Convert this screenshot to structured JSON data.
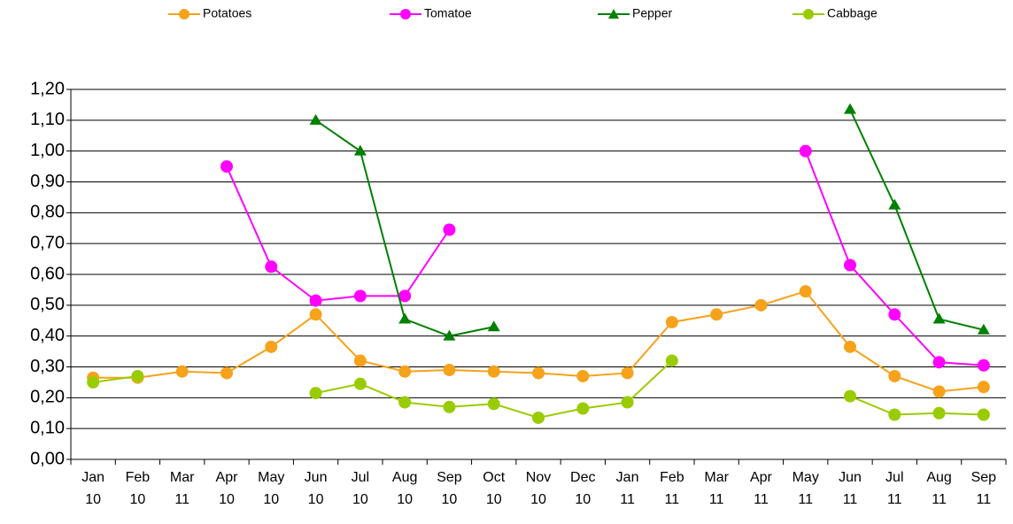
{
  "chart_data": {
    "type": "line",
    "categories": [
      [
        "Jan",
        "10"
      ],
      [
        "Feb",
        "10"
      ],
      [
        "Mar",
        "11"
      ],
      [
        "Apr",
        "10"
      ],
      [
        "May",
        "10"
      ],
      [
        "Jun",
        "10"
      ],
      [
        "Jul",
        "10"
      ],
      [
        "Aug",
        "10"
      ],
      [
        "Sep",
        "10"
      ],
      [
        "Oct",
        "10"
      ],
      [
        "Nov",
        "10"
      ],
      [
        "Dec",
        "10"
      ],
      [
        "Jan",
        "11"
      ],
      [
        "Feb",
        "11"
      ],
      [
        "Mar",
        "11"
      ],
      [
        "Apr",
        "11"
      ],
      [
        "May",
        "11"
      ],
      [
        "Jun",
        "11"
      ],
      [
        "Jul",
        "11"
      ],
      [
        "Aug",
        "11"
      ],
      [
        "Sep",
        "11"
      ]
    ],
    "series": [
      {
        "name": "Potatoes",
        "color": "#f7a21b",
        "marker": "circle",
        "values": [
          0.265,
          0.265,
          0.285,
          0.28,
          0.365,
          0.47,
          0.32,
          0.285,
          0.29,
          0.285,
          0.28,
          0.27,
          0.28,
          0.445,
          0.47,
          0.5,
          0.545,
          0.365,
          0.27,
          0.22,
          0.235
        ]
      },
      {
        "name": "Tomatoe",
        "color": "#ff00ff",
        "marker": "circle",
        "values": [
          null,
          null,
          null,
          0.95,
          0.625,
          0.515,
          0.53,
          0.53,
          0.745,
          null,
          null,
          null,
          null,
          null,
          null,
          null,
          1.0,
          0.63,
          0.47,
          0.315,
          0.305
        ]
      },
      {
        "name": "Pepper",
        "color": "#008000",
        "marker": "triangle",
        "values": [
          null,
          null,
          null,
          null,
          null,
          1.1,
          1.0,
          0.455,
          0.4,
          0.43,
          null,
          null,
          null,
          null,
          null,
          null,
          null,
          1.135,
          0.825,
          0.455,
          0.42
        ]
      },
      {
        "name": "Cabbage",
        "color": "#99cc00",
        "marker": "circle",
        "values": [
          0.25,
          0.27,
          null,
          null,
          null,
          0.215,
          0.245,
          0.185,
          0.17,
          0.18,
          0.135,
          0.165,
          0.185,
          0.32,
          null,
          null,
          null,
          0.205,
          0.145,
          0.15,
          0.145
        ]
      }
    ],
    "ylim": [
      0,
      1.2
    ],
    "yticks": [
      {
        "value": 0,
        "label": "0,00"
      },
      {
        "value": 0.1,
        "label": "0,10"
      },
      {
        "value": 0.2,
        "label": "0,20"
      },
      {
        "value": 0.3,
        "label": "0,30"
      },
      {
        "value": 0.4,
        "label": "0,40"
      },
      {
        "value": 0.5,
        "label": "0,50"
      },
      {
        "value": 0.6,
        "label": "0,60"
      },
      {
        "value": 0.7,
        "label": "0,70"
      },
      {
        "value": 0.8,
        "label": "0,80"
      },
      {
        "value": 0.9,
        "label": "0,90"
      },
      {
        "value": 1.0,
        "label": "1,00"
      },
      {
        "value": 1.1,
        "label": "1,10"
      },
      {
        "value": 1.2,
        "label": "1,20"
      }
    ],
    "grid": true,
    "legend": "top"
  }
}
